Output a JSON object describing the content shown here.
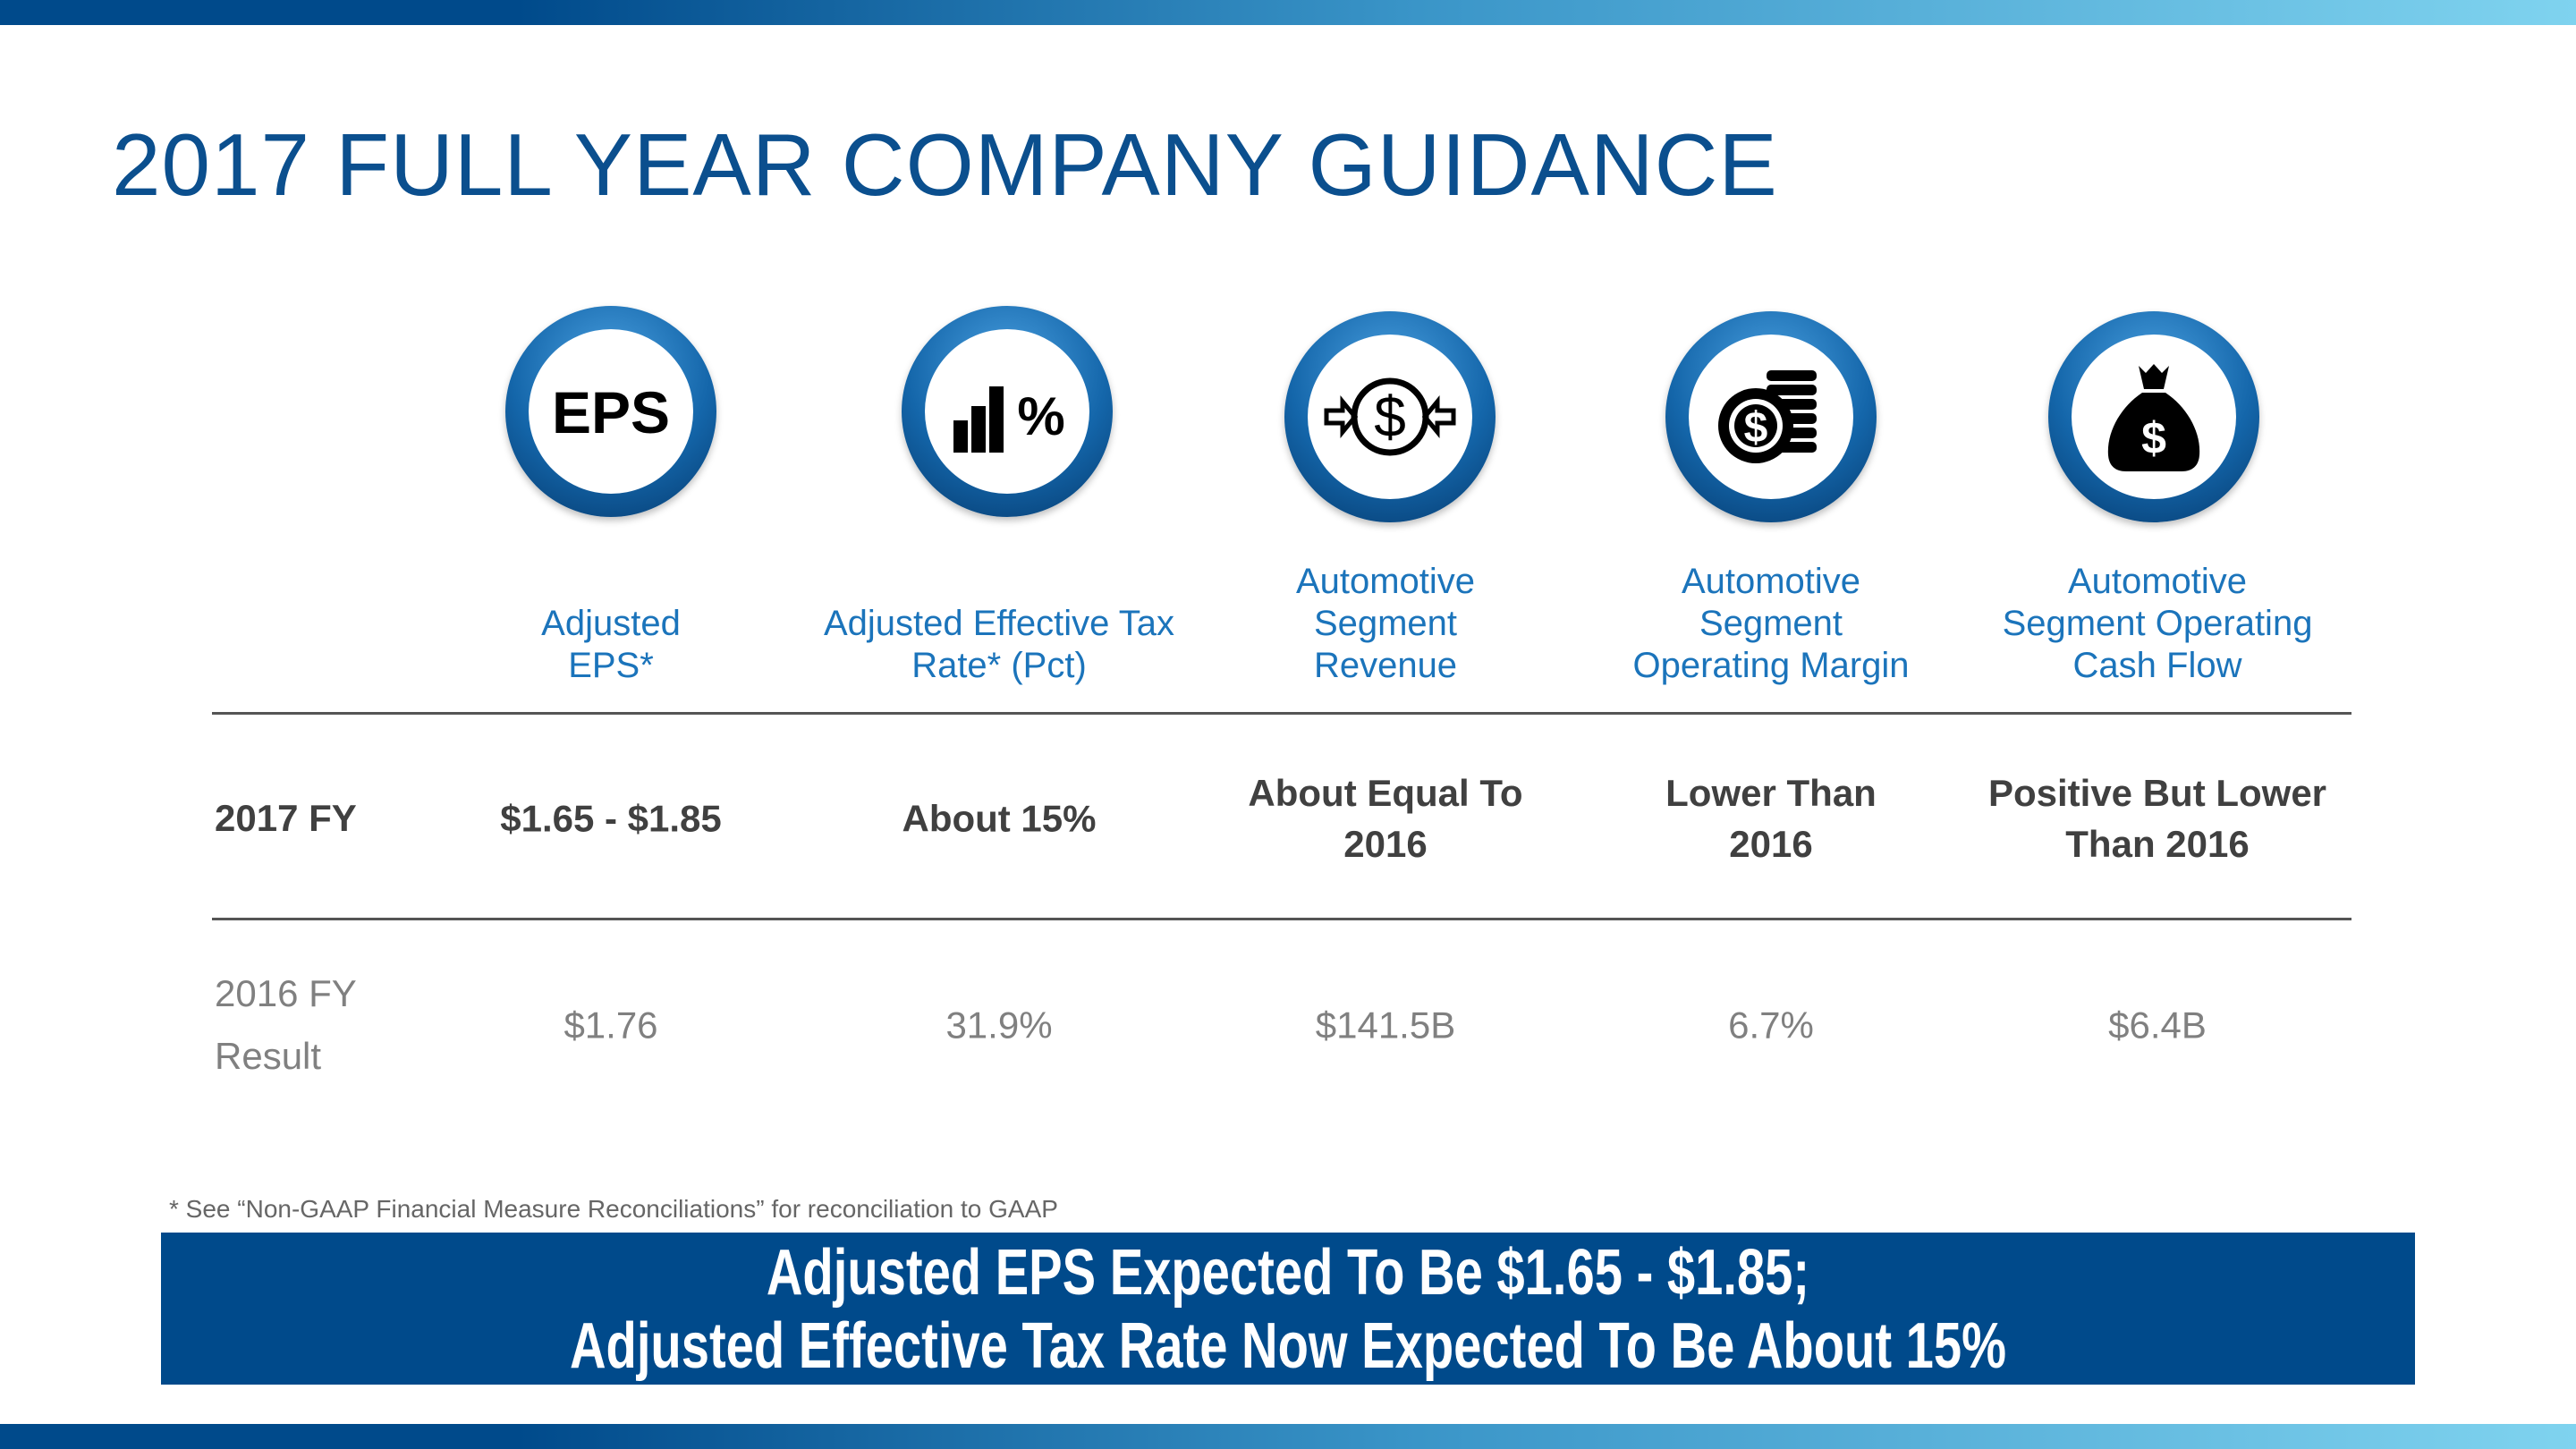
{
  "title": "2017 FULL YEAR COMPANY GUIDANCE",
  "colors": {
    "brand": "#004a8b",
    "header_text": "#1b74bb",
    "title": "#0b4f8e"
  },
  "columns": [
    {
      "icon": "eps-icon",
      "icon_text": "EPS",
      "header_lines": [
        "Adjusted",
        "EPS*"
      ],
      "fy2017": [
        "$1.65 - $1.85"
      ],
      "fy2016": "$1.76"
    },
    {
      "icon": "bar-chart-percent-icon",
      "icon_text": "%",
      "header_lines": [
        "Adjusted Effective Tax",
        "Rate* (Pct)"
      ],
      "fy2017": [
        "About 15%"
      ],
      "fy2016": "31.9%"
    },
    {
      "icon": "dollar-compress-icon",
      "header_lines": [
        "Automotive",
        "Segment",
        "Revenue"
      ],
      "fy2017": [
        "About Equal To",
        "2016"
      ],
      "fy2016": "$141.5B"
    },
    {
      "icon": "coin-stack-icon",
      "header_lines": [
        "Automotive",
        "Segment",
        "Operating Margin"
      ],
      "fy2017": [
        "Lower Than",
        "2016"
      ],
      "fy2016": "6.7%"
    },
    {
      "icon": "money-bag-icon",
      "header_lines": [
        "Automotive",
        "Segment Operating",
        "Cash Flow"
      ],
      "fy2017": [
        "Positive But Lower",
        "Than 2016"
      ],
      "fy2016": "$6.4B"
    }
  ],
  "rows": {
    "fy2017_label": "2017 FY",
    "fy2016_label_lines": [
      "2016 FY",
      "Result"
    ]
  },
  "footnote": "*  See “Non-GAAP Financial Measure Reconciliations” for reconciliation to GAAP",
  "banner": {
    "line1": "Adjusted EPS Expected To Be $1.65 - $1.85;",
    "line2": "Adjusted Effective Tax Rate Now Expected To Be About 15%"
  }
}
